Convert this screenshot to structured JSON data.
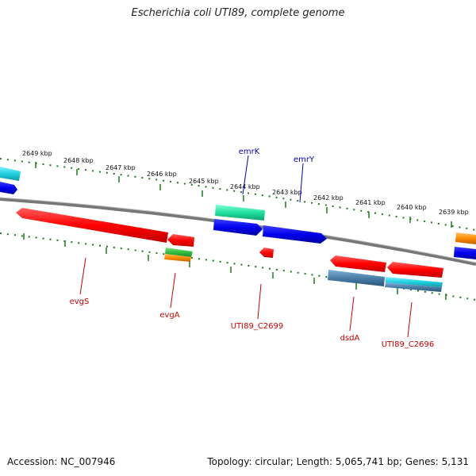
{
  "title": "Escherichia coli UTI89, complete genome",
  "footer": {
    "accession": "Accession: NC_007946",
    "summary": "Topology: circular; Length: 5,065,741 bp; Genes: 5,131"
  },
  "colors": {
    "backbone": "#808080",
    "tick": "#1a7a1a",
    "label_red": "#cc0000",
    "label_blue": "#0000bb",
    "red": "#ff0000",
    "blue": "#0000ee",
    "cyan": "#20d0e0",
    "green": "#30c040",
    "orange": "#ff8c00",
    "teal": "#20e0a0",
    "steel": "#4a7fa8"
  },
  "kbp_ticks": [
    "2649 kbp",
    "2648 kbp",
    "2647 kbp",
    "2646 kbp",
    "2645 kbp",
    "2644 kbp",
    "2643 kbp",
    "2642 kbp",
    "2641 kbp",
    "2640 kbp",
    "2639 kbp"
  ],
  "genes": [
    {
      "name": "evgS",
      "strand": "minus",
      "color": "red"
    },
    {
      "name": "evgA",
      "strand": "minus",
      "color": "red"
    },
    {
      "name": "emrK",
      "strand": "plus",
      "color": "blue"
    },
    {
      "name": "emrY",
      "strand": "plus",
      "color": "blue"
    },
    {
      "name": "UTI89_C2699",
      "strand": "minus",
      "color": "red"
    },
    {
      "name": "dsdA",
      "strand": "minus",
      "color": "red"
    },
    {
      "name": "UTI89_C2696",
      "strand": "minus",
      "color": "red"
    }
  ]
}
